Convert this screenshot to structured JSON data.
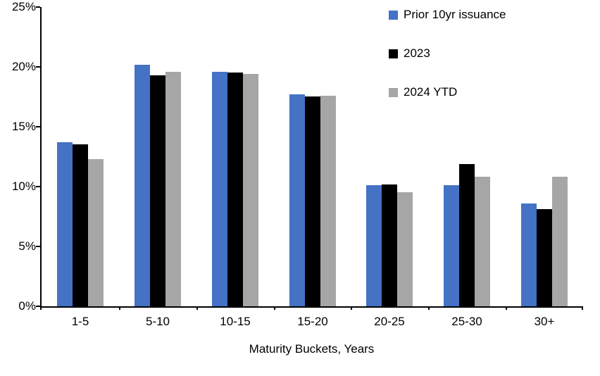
{
  "chart_data": {
    "type": "bar",
    "title": "",
    "categories": [
      "1-5",
      "5-10",
      "10-15",
      "15-20",
      "20-25",
      "25-30",
      "30+"
    ],
    "series": [
      {
        "name": "Prior 10yr issuance",
        "color": "#4472C4",
        "values": [
          13.7,
          20.2,
          19.6,
          17.7,
          10.1,
          10.1,
          8.6
        ]
      },
      {
        "name": "2023",
        "color": "#000000",
        "values": [
          13.5,
          19.3,
          19.5,
          17.5,
          10.2,
          11.9,
          8.1
        ]
      },
      {
        "name": "2024 YTD",
        "color": "#A6A6A6",
        "values": [
          12.3,
          19.6,
          19.4,
          17.6,
          9.5,
          10.8,
          10.8
        ]
      }
    ],
    "xlabel": "Maturity Buckets, Years",
    "ylabel": "",
    "ylim": [
      0,
      25
    ],
    "yticks": [
      0,
      5,
      10,
      15,
      20,
      25
    ],
    "ytick_labels": [
      "0%",
      "5%",
      "10%",
      "15%",
      "20%",
      "25%"
    ],
    "grid": false,
    "legend_position": "top-right"
  }
}
